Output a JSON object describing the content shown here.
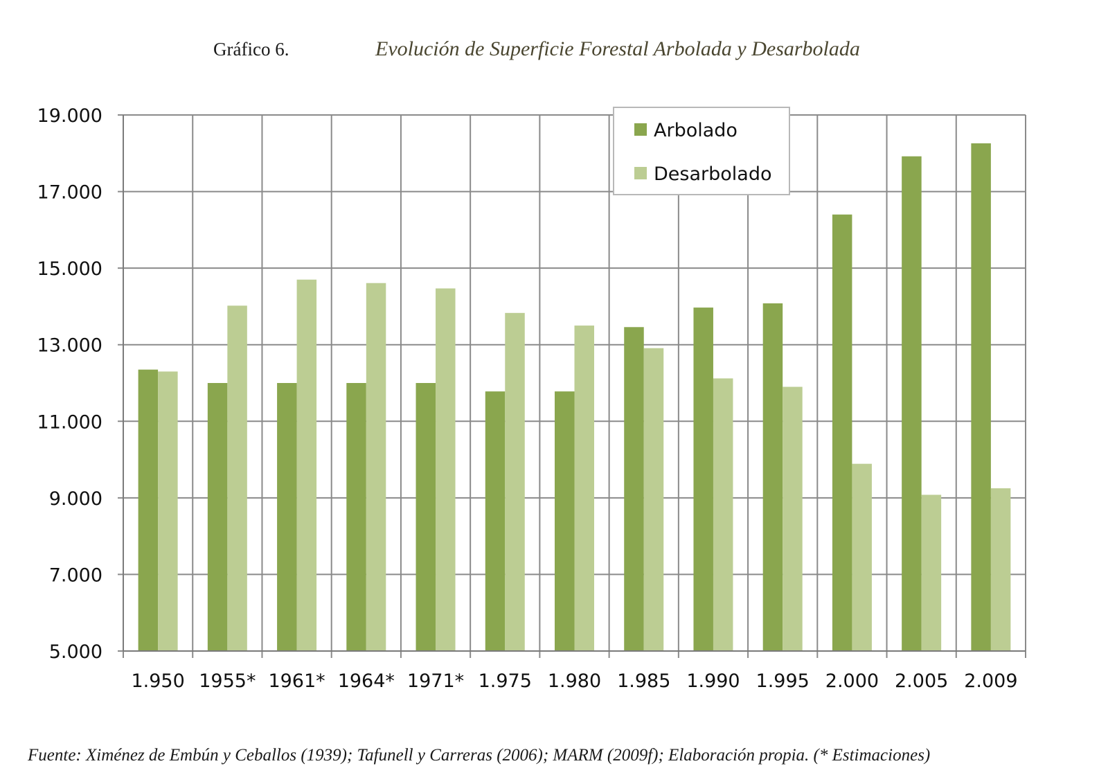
{
  "header": {
    "label": "Gráfico 6.",
    "title": "Evolución de Superficie Forestal Arbolada y Desarbolada"
  },
  "source": "Fuente: Ximénez de Embún y Ceballos (1939); Tafunell y Carreras (2006); MARM (2009f); Elaboración propia. (* Estimaciones)",
  "chart_data": {
    "type": "bar",
    "title": "Evolución de Superficie Forestal Arbolada y Desarbolada",
    "xlabel": "",
    "ylabel": "",
    "ylim": [
      5000,
      19000
    ],
    "yticks": [
      5000,
      7000,
      9000,
      11000,
      13000,
      15000,
      17000,
      19000
    ],
    "ytick_labels": [
      "5.000",
      "7.000",
      "9.000",
      "11.000",
      "13.000",
      "15.000",
      "17.000",
      "19.000"
    ],
    "grid": true,
    "legend_position": "top-right",
    "categories": [
      "1.950",
      "1955*",
      "1961*",
      "1964*",
      "1971*",
      "1.975",
      "1.980",
      "1.985",
      "1.990",
      "1.995",
      "2.000",
      "2.005",
      "2.009"
    ],
    "series": [
      {
        "name": "Arbolado",
        "color": "#8aa64e",
        "values": [
          12350,
          12000,
          12000,
          12000,
          12000,
          11780,
          11780,
          13460,
          13970,
          14080,
          16400,
          17920,
          18260
        ]
      },
      {
        "name": "Desarbolado",
        "color": "#bccd93",
        "values": [
          12300,
          14020,
          14700,
          14610,
          14470,
          13830,
          13500,
          12910,
          12120,
          11900,
          9890,
          9080,
          9250
        ]
      }
    ]
  }
}
